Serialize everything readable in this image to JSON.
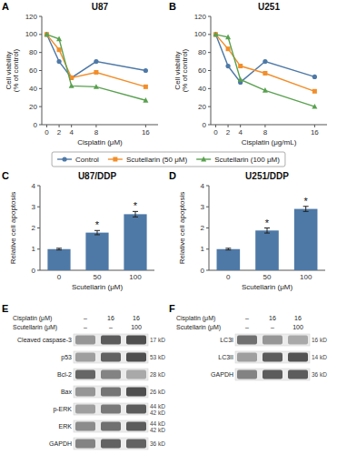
{
  "chart_data": [
    {
      "type": "line",
      "title": "U87",
      "xlabel": "Cisplatin (μM)",
      "ylabel": "Cell viability\n(% of control)",
      "x": [
        0,
        2,
        4,
        8,
        16
      ],
      "xlim": [
        -0.8,
        18
      ],
      "xticks": [
        0,
        2,
        4,
        8,
        16
      ],
      "ylim": [
        0,
        120
      ],
      "yticks": [
        0,
        20,
        40,
        60,
        80,
        100,
        120
      ],
      "legend": "bottom",
      "series": [
        {
          "name": "Control",
          "color": "#4e79a7",
          "marker": "circle",
          "values": [
            100,
            70,
            52,
            70,
            60
          ]
        },
        {
          "name": "Scutellarin (50 μM)",
          "color": "#f28e2b",
          "marker": "square",
          "values": [
            100,
            83,
            52,
            58,
            42
          ]
        },
        {
          "name": "Scutellarin (100 μM)",
          "color": "#59a14f",
          "marker": "triangle",
          "values": [
            100,
            95,
            43,
            42,
            27
          ]
        }
      ],
      "annotations": [
        {
          "text": "A"
        }
      ]
    },
    {
      "type": "line",
      "title": "U251",
      "xlabel": "Cisplatin (μg/mL)",
      "ylabel": "Cell viability\n(% of control)",
      "x": [
        0,
        2,
        4,
        8,
        16
      ],
      "xlim": [
        -0.8,
        18
      ],
      "xticks": [
        0,
        2,
        4,
        8,
        16
      ],
      "ylim": [
        0,
        120
      ],
      "yticks": [
        0,
        20,
        40,
        60,
        80,
        100,
        120
      ],
      "series": [
        {
          "color": "#4e79a7",
          "marker": "circle",
          "values": [
            100,
            65,
            47,
            70,
            53
          ]
        },
        {
          "color": "#f28e2b",
          "marker": "square",
          "values": [
            100,
            84,
            65,
            57,
            37
          ]
        },
        {
          "color": "#59a14f",
          "marker": "triangle",
          "values": [
            100,
            97,
            50,
            38,
            20
          ]
        }
      ],
      "annotations": [
        {
          "text": "B"
        }
      ]
    },
    {
      "type": "bar",
      "title": "U87/DDP",
      "xlabel": "Scutellarin (μM)",
      "ylabel": "Relative cell apoptosis",
      "categories": [
        "0",
        "50",
        "100"
      ],
      "values": [
        1.0,
        1.78,
        2.65
      ],
      "errors": [
        0.04,
        0.1,
        0.13
      ],
      "color": "#4e79a7",
      "ylim": [
        0,
        4
      ],
      "yticks": [
        0,
        1,
        2,
        3,
        4
      ],
      "annotations": [
        {
          "text": "C"
        },
        {
          "text": "*",
          "category": "50"
        },
        {
          "text": "*",
          "category": "100"
        }
      ]
    },
    {
      "type": "bar",
      "title": "U251/DDP",
      "xlabel": "Scutellarin (μM)",
      "ylabel": "Relative cell apoptosis",
      "categories": [
        "0",
        "50",
        "100"
      ],
      "values": [
        1.0,
        1.88,
        2.9
      ],
      "errors": [
        0.04,
        0.12,
        0.12
      ],
      "color": "#4e79a7",
      "ylim": [
        0,
        4
      ],
      "yticks": [
        0,
        1,
        2,
        3,
        4
      ],
      "annotations": [
        {
          "text": "D"
        },
        {
          "text": "*",
          "category": "50"
        },
        {
          "text": "*",
          "category": "100"
        }
      ]
    },
    {
      "type": "heatmap",
      "annotations": [
        {
          "text": "E"
        }
      ],
      "column_headers": [
        {
          "label": "Cisplatin (μM)",
          "values": [
            "–",
            "16",
            "16"
          ]
        },
        {
          "label": "Scutellarin (μM)",
          "values": [
            "–",
            "–",
            "100"
          ]
        }
      ],
      "categories": [
        "Cleaved caspase-3",
        "p53",
        "Bcl-2",
        "Bax",
        "p-ERK",
        "ERK",
        "GAPDH"
      ],
      "labels_right": [
        "17 kD",
        "53 kD",
        "28 kD",
        "26 kD",
        "44 kD\n42 kD",
        "44 kD\n42 kD",
        "36 kD"
      ],
      "values": [
        [
          0.55,
          0.85,
          0.92
        ],
        [
          0.5,
          0.82,
          0.92
        ],
        [
          0.8,
          0.65,
          0.45
        ],
        [
          0.55,
          0.72,
          0.92
        ],
        [
          0.5,
          0.7,
          0.85
        ],
        [
          0.6,
          0.75,
          0.85
        ],
        [
          0.65,
          0.82,
          0.82
        ]
      ]
    },
    {
      "type": "heatmap",
      "annotations": [
        {
          "text": "F"
        }
      ],
      "column_headers": [
        {
          "label": "Cisplatin (μM)",
          "values": [
            "–",
            "16",
            "16"
          ]
        },
        {
          "label": "Scutellarin (μM)",
          "values": [
            "–",
            "–",
            "100"
          ]
        }
      ],
      "categories": [
        "LC3I",
        "LC3II",
        "GAPDH"
      ],
      "labels_right": [
        "16 kD",
        "14 kD",
        "36 kD"
      ],
      "values": [
        [
          0.75,
          0.55,
          0.45
        ],
        [
          0.5,
          0.85,
          0.9
        ],
        [
          0.65,
          0.85,
          0.85
        ]
      ]
    }
  ]
}
